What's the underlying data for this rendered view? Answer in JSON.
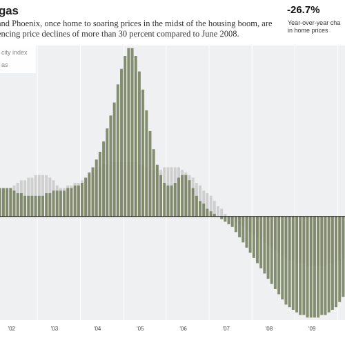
{
  "header": {
    "title": "gas",
    "description_line1": "and Phoenix, once home to soaring prices in the midst of the housing boom, are",
    "description_line2": "encing price declines of more than 30 percent compared to June 2008."
  },
  "stat": {
    "value": "-26.7%",
    "label_line1": "Year-over-year cha",
    "label_line2": "in home prices"
  },
  "legend": {
    "item1": "city index",
    "item2": "as"
  },
  "colors": {
    "bars": "#7b8565",
    "background_bars": "#cfcfcf",
    "plot_bg": "#eef0f1",
    "grid": "#ffffff",
    "zero_line": "#111111"
  },
  "chart_data": {
    "type": "bar",
    "title": "",
    "xlabel": "",
    "ylabel": "",
    "ylim": [
      -40,
      66
    ],
    "x_ticks": [
      "'02",
      "'03",
      "'04",
      "'05",
      "'06",
      "'07",
      "'08",
      "'09"
    ],
    "series": [
      {
        "name": "as",
        "role": "foreground",
        "values": [
          11,
          11,
          11,
          11,
          11,
          10,
          9,
          9,
          8,
          8,
          8,
          8,
          8,
          8,
          9,
          9,
          10,
          10,
          10,
          10,
          11,
          11,
          12,
          12,
          13,
          15,
          17,
          19,
          22,
          25,
          29,
          34,
          39,
          44,
          51,
          57,
          62,
          65,
          65,
          62,
          56,
          49,
          41,
          33,
          26,
          20,
          16,
          13,
          12,
          12,
          13,
          15,
          16,
          16,
          14,
          11,
          8,
          6,
          5,
          3,
          2,
          1,
          0,
          -1,
          -2,
          -3,
          -4,
          -6,
          -8,
          -10,
          -12,
          -14,
          -16,
          -18,
          -20,
          -22,
          -24,
          -26,
          -28,
          -30,
          -32,
          -34,
          -35,
          -36,
          -37,
          -38,
          -38,
          -39,
          -39,
          -39,
          -39,
          -38,
          -38,
          -37,
          -36,
          -35,
          -33,
          -31
        ]
      },
      {
        "name": "city index",
        "role": "background",
        "values": [
          10,
          10,
          10,
          11,
          11,
          12,
          13,
          14,
          14,
          15,
          15,
          16,
          16,
          16,
          16,
          15,
          14,
          12,
          11,
          11,
          12,
          12,
          13,
          13,
          14,
          15,
          16,
          17,
          18,
          19,
          20,
          20,
          21,
          21,
          21,
          21,
          21,
          21,
          21,
          21,
          20,
          20,
          19,
          18,
          18,
          18,
          18,
          19,
          19,
          19,
          19,
          19,
          18,
          17,
          16,
          15,
          13,
          12,
          10,
          9,
          8,
          6,
          4,
          3,
          1,
          0,
          -1,
          -2,
          -3,
          -4,
          -5,
          -6,
          -7,
          -8,
          -9,
          -10,
          -11,
          -12,
          -13,
          -14,
          -15,
          -16,
          -17,
          -17,
          -18,
          -18,
          -18,
          -19,
          -19,
          -19,
          -19,
          -19,
          -19,
          -18,
          -18,
          -17,
          -17,
          -16
        ]
      }
    ]
  }
}
